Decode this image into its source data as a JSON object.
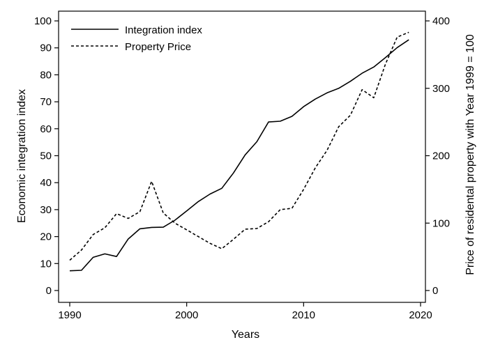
{
  "chart_data": {
    "type": "line",
    "title": "",
    "xlabel": "Years",
    "ylabel_left": "Economic integration index",
    "ylabel_right": "Price of residental property with Year 1999 = 100",
    "xlim": [
      1990,
      2020
    ],
    "ylim_left": [
      0,
      100
    ],
    "ylim_right": [
      0,
      400
    ],
    "x_ticks": [
      1990,
      2000,
      2010,
      2020
    ],
    "y_ticks_left": [
      0,
      10,
      20,
      30,
      40,
      50,
      60,
      70,
      80,
      90,
      100
    ],
    "y_ticks_right": [
      0,
      100,
      200,
      300,
      400
    ],
    "grid": false,
    "legend_position": "top-left",
    "x": [
      1990,
      1991,
      1992,
      1993,
      1994,
      1995,
      1996,
      1997,
      1998,
      1999,
      2000,
      2001,
      2002,
      2003,
      2004,
      2005,
      2006,
      2007,
      2008,
      2009,
      2010,
      2011,
      2012,
      2013,
      2014,
      2015,
      2016,
      2017,
      2018,
      2019
    ],
    "series": [
      {
        "name": "Integration index",
        "axis": "left",
        "style": "solid",
        "values": [
          7.3,
          7.5,
          12.3,
          13.6,
          12.6,
          19.1,
          22.9,
          23.4,
          23.5,
          26.1,
          29.5,
          33.0,
          35.8,
          37.9,
          43.6,
          50.3,
          55.2,
          62.5,
          62.8,
          64.6,
          68.2,
          71.0,
          73.3,
          75.0,
          77.6,
          80.6,
          82.9,
          86.4,
          90.1,
          93.0
        ]
      },
      {
        "name": "Property Price",
        "axis": "right",
        "style": "dashed",
        "values": [
          45,
          60,
          83,
          93,
          114,
          107,
          117,
          162,
          115,
          100,
          90,
          80,
          70,
          62,
          76,
          91,
          92,
          102,
          120,
          122,
          150,
          182,
          208,
          243,
          260,
          298,
          286,
          336,
          376,
          383
        ]
      }
    ]
  }
}
